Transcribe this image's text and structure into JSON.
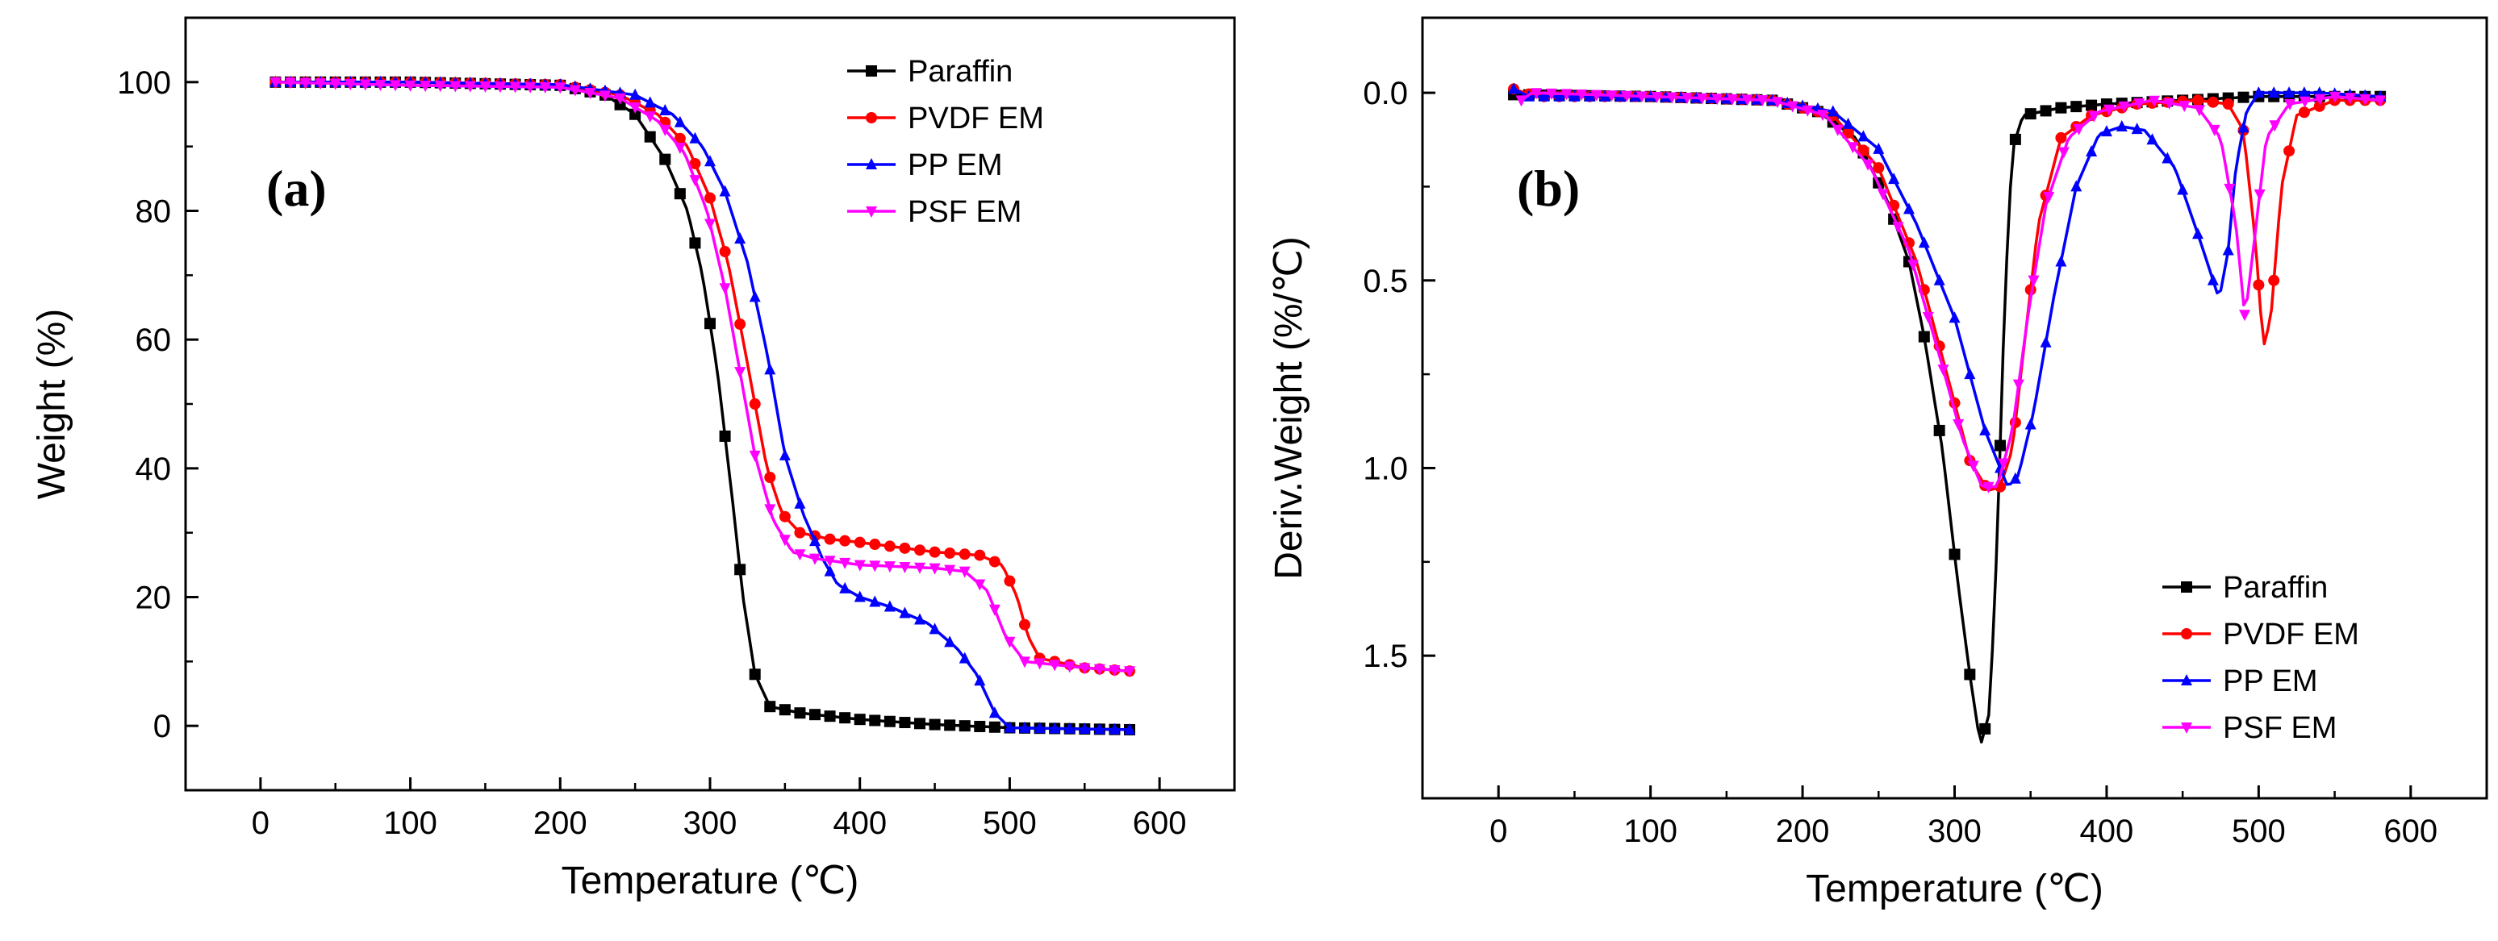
{
  "chart_data": [
    {
      "type": "line",
      "panel_label": "(a)",
      "xlabel": "Temperature (℃)",
      "ylabel": "Weight (%)",
      "xlim": [
        -50,
        650
      ],
      "ylim": [
        -10,
        110
      ],
      "xticks": [
        0,
        100,
        200,
        300,
        400,
        500,
        600
      ],
      "yticks": [
        0,
        20,
        40,
        60,
        80,
        100
      ],
      "legend_position": "top-right",
      "series": [
        {
          "name": "Paraffin",
          "color": "#000000",
          "marker": "square",
          "points": [
            [
              10,
              100
            ],
            [
              100,
              100
            ],
            [
              200,
              99.5
            ],
            [
              230,
              98
            ],
            [
              250,
              95
            ],
            [
              270,
              88
            ],
            [
              285,
              80
            ],
            [
              295,
              70
            ],
            [
              305,
              55
            ],
            [
              315,
              35
            ],
            [
              322,
              20
            ],
            [
              330,
              8
            ],
            [
              340,
              3
            ],
            [
              360,
              2
            ],
            [
              400,
              1
            ],
            [
              450,
              0.2
            ],
            [
              500,
              -0.3
            ],
            [
              580,
              -0.6
            ]
          ]
        },
        {
          "name": "PVDF EM",
          "color": "#ff0000",
          "marker": "circle",
          "points": [
            [
              10,
              100
            ],
            [
              100,
              100
            ],
            [
              200,
              99.6
            ],
            [
              240,
              98
            ],
            [
              265,
              95
            ],
            [
              285,
              90
            ],
            [
              300,
              82
            ],
            [
              312,
              72
            ],
            [
              322,
              60
            ],
            [
              330,
              50
            ],
            [
              338,
              40
            ],
            [
              348,
              33
            ],
            [
              360,
              30
            ],
            [
              380,
              29
            ],
            [
              400,
              28.5
            ],
            [
              450,
              27
            ],
            [
              480,
              26.5
            ],
            [
              495,
              25
            ],
            [
              505,
              20
            ],
            [
              512,
              14
            ],
            [
              520,
              10.5
            ],
            [
              550,
              9
            ],
            [
              580,
              8.5
            ]
          ]
        },
        {
          "name": "PP EM",
          "color": "#0000ff",
          "marker": "triangle-up",
          "points": [
            [
              10,
              100
            ],
            [
              100,
              100
            ],
            [
              200,
              99.6
            ],
            [
              250,
              98
            ],
            [
              275,
              95
            ],
            [
              295,
              90
            ],
            [
              310,
              83
            ],
            [
              325,
              72
            ],
            [
              338,
              58
            ],
            [
              350,
              42
            ],
            [
              362,
              33
            ],
            [
              375,
              26
            ],
            [
              385,
              22
            ],
            [
              400,
              20
            ],
            [
              420,
              18.5
            ],
            [
              445,
              16
            ],
            [
              465,
              12
            ],
            [
              478,
              8
            ],
            [
              490,
              2
            ],
            [
              500,
              -0.3
            ],
            [
              580,
              -0.6
            ]
          ]
        },
        {
          "name": "PSF EM",
          "color": "#ff00ff",
          "marker": "triangle-down",
          "points": [
            [
              10,
              100
            ],
            [
              100,
              99.5
            ],
            [
              200,
              99.2
            ],
            [
              240,
              97.5
            ],
            [
              265,
              94
            ],
            [
              283,
              89
            ],
            [
              298,
              80
            ],
            [
              310,
              68
            ],
            [
              320,
              55
            ],
            [
              330,
              42
            ],
            [
              342,
              32
            ],
            [
              355,
              27
            ],
            [
              370,
              26
            ],
            [
              400,
              25
            ],
            [
              450,
              24.5
            ],
            [
              470,
              24
            ],
            [
              485,
              21
            ],
            [
              497,
              14
            ],
            [
              510,
              10
            ],
            [
              550,
              9
            ],
            [
              580,
              8.5
            ]
          ]
        }
      ]
    },
    {
      "type": "line",
      "panel_label": "(b)",
      "xlabel": "Temperature (℃)",
      "ylabel": "Deriv.Weight (%/℃)",
      "xlim": [
        -50,
        650
      ],
      "ylim": [
        1.88,
        -0.2
      ],
      "y_inverted": true,
      "xticks": [
        0,
        100,
        200,
        300,
        400,
        500,
        600
      ],
      "yticks": [
        0.0,
        0.5,
        1.0,
        1.5
      ],
      "ytick_labels": [
        "0.0",
        "0.5",
        "1.0",
        "1.5"
      ],
      "legend_position": "bottom-right",
      "series": [
        {
          "name": "Paraffin",
          "color": "#000000",
          "marker": "square",
          "points": [
            [
              10,
              0.005
            ],
            [
              100,
              0.01
            ],
            [
              180,
              0.02
            ],
            [
              210,
              0.05
            ],
            [
              235,
              0.12
            ],
            [
              255,
              0.28
            ],
            [
              270,
              0.45
            ],
            [
              280,
              0.65
            ],
            [
              292,
              0.95
            ],
            [
              302,
              1.3
            ],
            [
              310,
              1.55
            ],
            [
              317,
              1.74
            ],
            [
              323,
              1.65
            ],
            [
              328,
              1.2
            ],
            [
              333,
              0.55
            ],
            [
              338,
              0.15
            ],
            [
              345,
              0.06
            ],
            [
              370,
              0.04
            ],
            [
              400,
              0.03
            ],
            [
              450,
              0.02
            ],
            [
              500,
              0.01
            ],
            [
              580,
              0.01
            ]
          ]
        },
        {
          "name": "PVDF EM",
          "color": "#ff0000",
          "marker": "circle",
          "points": [
            [
              10,
              -0.01
            ],
            [
              25,
              0.01
            ],
            [
              100,
              0.01
            ],
            [
              180,
              0.02
            ],
            [
              220,
              0.06
            ],
            [
              250,
              0.2
            ],
            [
              275,
              0.45
            ],
            [
              295,
              0.75
            ],
            [
              310,
              0.98
            ],
            [
              322,
              1.06
            ],
            [
              330,
              1.05
            ],
            [
              338,
              0.95
            ],
            [
              345,
              0.7
            ],
            [
              355,
              0.35
            ],
            [
              370,
              0.12
            ],
            [
              390,
              0.06
            ],
            [
              420,
              0.03
            ],
            [
              460,
              0.02
            ],
            [
              480,
              0.03
            ],
            [
              490,
              0.1
            ],
            [
              498,
              0.4
            ],
            [
              503,
              0.68
            ],
            [
              508,
              0.6
            ],
            [
              515,
              0.25
            ],
            [
              525,
              0.06
            ],
            [
              550,
              0.02
            ],
            [
              580,
              0.02
            ]
          ]
        },
        {
          "name": "PP EM",
          "color": "#0000ff",
          "marker": "triangle-up",
          "points": [
            [
              10,
              -0.01
            ],
            [
              20,
              0.01
            ],
            [
              100,
              0.01
            ],
            [
              180,
              0.02
            ],
            [
              220,
              0.05
            ],
            [
              250,
              0.15
            ],
            [
              275,
              0.35
            ],
            [
              300,
              0.6
            ],
            [
              320,
              0.9
            ],
            [
              335,
              1.05
            ],
            [
              342,
              1.02
            ],
            [
              352,
              0.85
            ],
            [
              365,
              0.55
            ],
            [
              380,
              0.25
            ],
            [
              395,
              0.11
            ],
            [
              410,
              0.09
            ],
            [
              425,
              0.1
            ],
            [
              445,
              0.2
            ],
            [
              462,
              0.4
            ],
            [
              474,
              0.55
            ],
            [
              480,
              0.42
            ],
            [
              485,
              0.2
            ],
            [
              492,
              0.05
            ],
            [
              500,
              0.0
            ],
            [
              540,
              0.0
            ],
            [
              580,
              0.01
            ]
          ]
        },
        {
          "name": "PSF EM",
          "color": "#ff00ff",
          "marker": "triangle-down",
          "points": [
            [
              15,
              0.02
            ],
            [
              22,
              0.0
            ],
            [
              100,
              0.01
            ],
            [
              180,
              0.02
            ],
            [
              215,
              0.06
            ],
            [
              245,
              0.2
            ],
            [
              270,
              0.42
            ],
            [
              290,
              0.7
            ],
            [
              305,
              0.92
            ],
            [
              318,
              1.05
            ],
            [
              328,
              1.05
            ],
            [
              338,
              0.9
            ],
            [
              348,
              0.6
            ],
            [
              360,
              0.3
            ],
            [
              375,
              0.12
            ],
            [
              395,
              0.05
            ],
            [
              430,
              0.02
            ],
            [
              460,
              0.04
            ],
            [
              475,
              0.12
            ],
            [
              485,
              0.35
            ],
            [
              491,
              0.6
            ],
            [
              497,
              0.4
            ],
            [
              505,
              0.12
            ],
            [
              520,
              0.03
            ],
            [
              550,
              0.01
            ],
            [
              580,
              0.02
            ]
          ]
        }
      ]
    }
  ]
}
